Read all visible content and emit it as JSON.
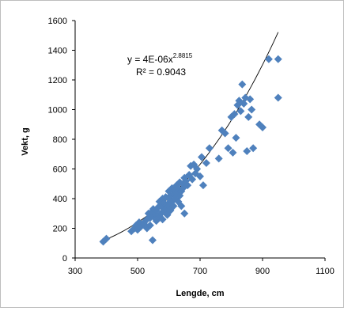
{
  "colors": {
    "marker": "#4f81bd",
    "trendline": "#000000",
    "axis": "#000000",
    "frame": "#bdbdbd"
  },
  "chart_data": {
    "type": "scatter",
    "title": "",
    "xlabel": "Lengde, cm",
    "ylabel": "Vekt, g",
    "xlim": [
      300,
      1100
    ],
    "ylim": [
      0,
      1600
    ],
    "x_ticks": [
      300,
      500,
      700,
      900,
      1100
    ],
    "y_ticks": [
      0,
      200,
      400,
      600,
      800,
      1000,
      1200,
      1400,
      1600
    ],
    "grid": false,
    "legend": "none",
    "marker_shape": "diamond",
    "trendline": {
      "type": "power",
      "equation_prefix": "y = 4E-06x",
      "equation_exponent": "2.8815",
      "r2_label": "R² = 0.9043",
      "coefficient": 4e-06,
      "exponent": 2.8815,
      "x_range": [
        390,
        950
      ]
    },
    "x": [
      390,
      400,
      480,
      490,
      495,
      500,
      505,
      510,
      520,
      525,
      530,
      530,
      535,
      540,
      540,
      545,
      548,
      550,
      550,
      555,
      560,
      560,
      565,
      570,
      570,
      575,
      575,
      580,
      580,
      585,
      585,
      590,
      590,
      595,
      595,
      600,
      600,
      600,
      605,
      605,
      610,
      610,
      615,
      615,
      620,
      620,
      625,
      625,
      630,
      630,
      635,
      635,
      640,
      640,
      645,
      645,
      650,
      650,
      655,
      660,
      665,
      670,
      675,
      680,
      685,
      690,
      700,
      705,
      710,
      720,
      730,
      760,
      770,
      780,
      790,
      800,
      805,
      810,
      815,
      820,
      825,
      830,
      835,
      840,
      845,
      850,
      855,
      860,
      865,
      870,
      890,
      900,
      920,
      950,
      950
    ],
    "y": [
      110,
      130,
      180,
      200,
      220,
      190,
      240,
      210,
      230,
      250,
      200,
      260,
      300,
      270,
      220,
      310,
      120,
      330,
      280,
      300,
      250,
      320,
      340,
      280,
      380,
      300,
      350,
      260,
      400,
      320,
      370,
      330,
      410,
      290,
      360,
      400,
      350,
      450,
      320,
      420,
      380,
      470,
      350,
      430,
      460,
      400,
      490,
      440,
      380,
      470,
      420,
      510,
      450,
      350,
      500,
      470,
      540,
      300,
      520,
      490,
      560,
      620,
      530,
      630,
      570,
      600,
      550,
      680,
      490,
      640,
      740,
      670,
      860,
      840,
      740,
      950,
      710,
      970,
      810,
      1030,
      1060,
      990,
      1170,
      1040,
      1080,
      720,
      950,
      1070,
      1000,
      740,
      900,
      880,
      1340,
      1340,
      1080
    ]
  }
}
